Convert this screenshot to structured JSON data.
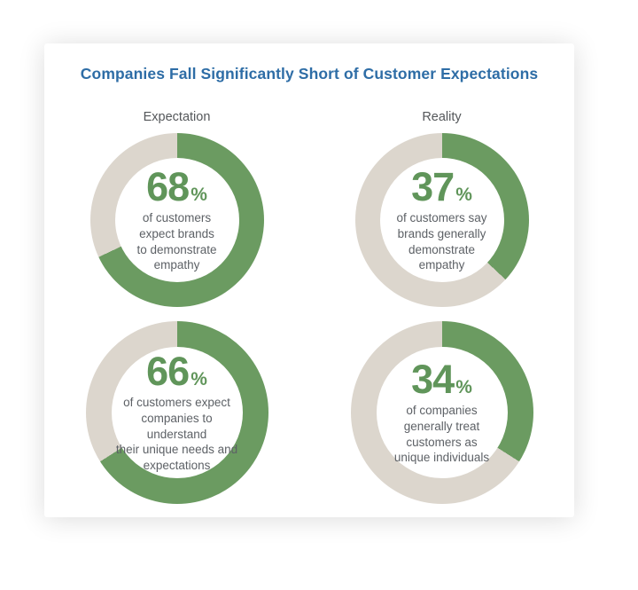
{
  "title": "Companies Fall Significantly Short of Customer Expectations",
  "columns": [
    {
      "label": "Expectation"
    },
    {
      "label": "Reality"
    }
  ],
  "colors": {
    "title_blue": "#2e6da6",
    "percent_green": "#60955a",
    "ring_green": "#6b9b61",
    "ring_track": "#dcd6cd",
    "caption_gray": "#5d6166",
    "header_gray": "#54575a",
    "card_bg": "#ffffff"
  },
  "chart_data": [
    {
      "type": "pie",
      "subtype": "donut",
      "group": "Expectation",
      "value": 68,
      "suffix": "%",
      "caption": "of customers\nexpect brands\nto demonstrate\nempathy",
      "segment_color": "#6b9b61",
      "track_color": "#dcd6cd",
      "start_angle_deg": 0,
      "direction": "clockwise"
    },
    {
      "type": "pie",
      "subtype": "donut",
      "group": "Reality",
      "value": 37,
      "suffix": "%",
      "caption": "of customers say\nbrands generally\ndemonstrate\nempathy",
      "segment_color": "#6b9b61",
      "track_color": "#dcd6cd",
      "start_angle_deg": 0,
      "direction": "clockwise"
    },
    {
      "type": "pie",
      "subtype": "donut",
      "group": "Expectation",
      "value": 66,
      "suffix": "%",
      "caption": "of customers expect\ncompanies to understand\ntheir unique needs and\nexpectations",
      "segment_color": "#6b9b61",
      "track_color": "#dcd6cd",
      "start_angle_deg": 0,
      "direction": "clockwise"
    },
    {
      "type": "pie",
      "subtype": "donut",
      "group": "Reality",
      "value": 34,
      "suffix": "%",
      "caption": "of companies\ngenerally treat\ncustomers as\nunique individuals",
      "segment_color": "#6b9b61",
      "track_color": "#dcd6cd",
      "start_angle_deg": 0,
      "direction": "clockwise"
    }
  ]
}
